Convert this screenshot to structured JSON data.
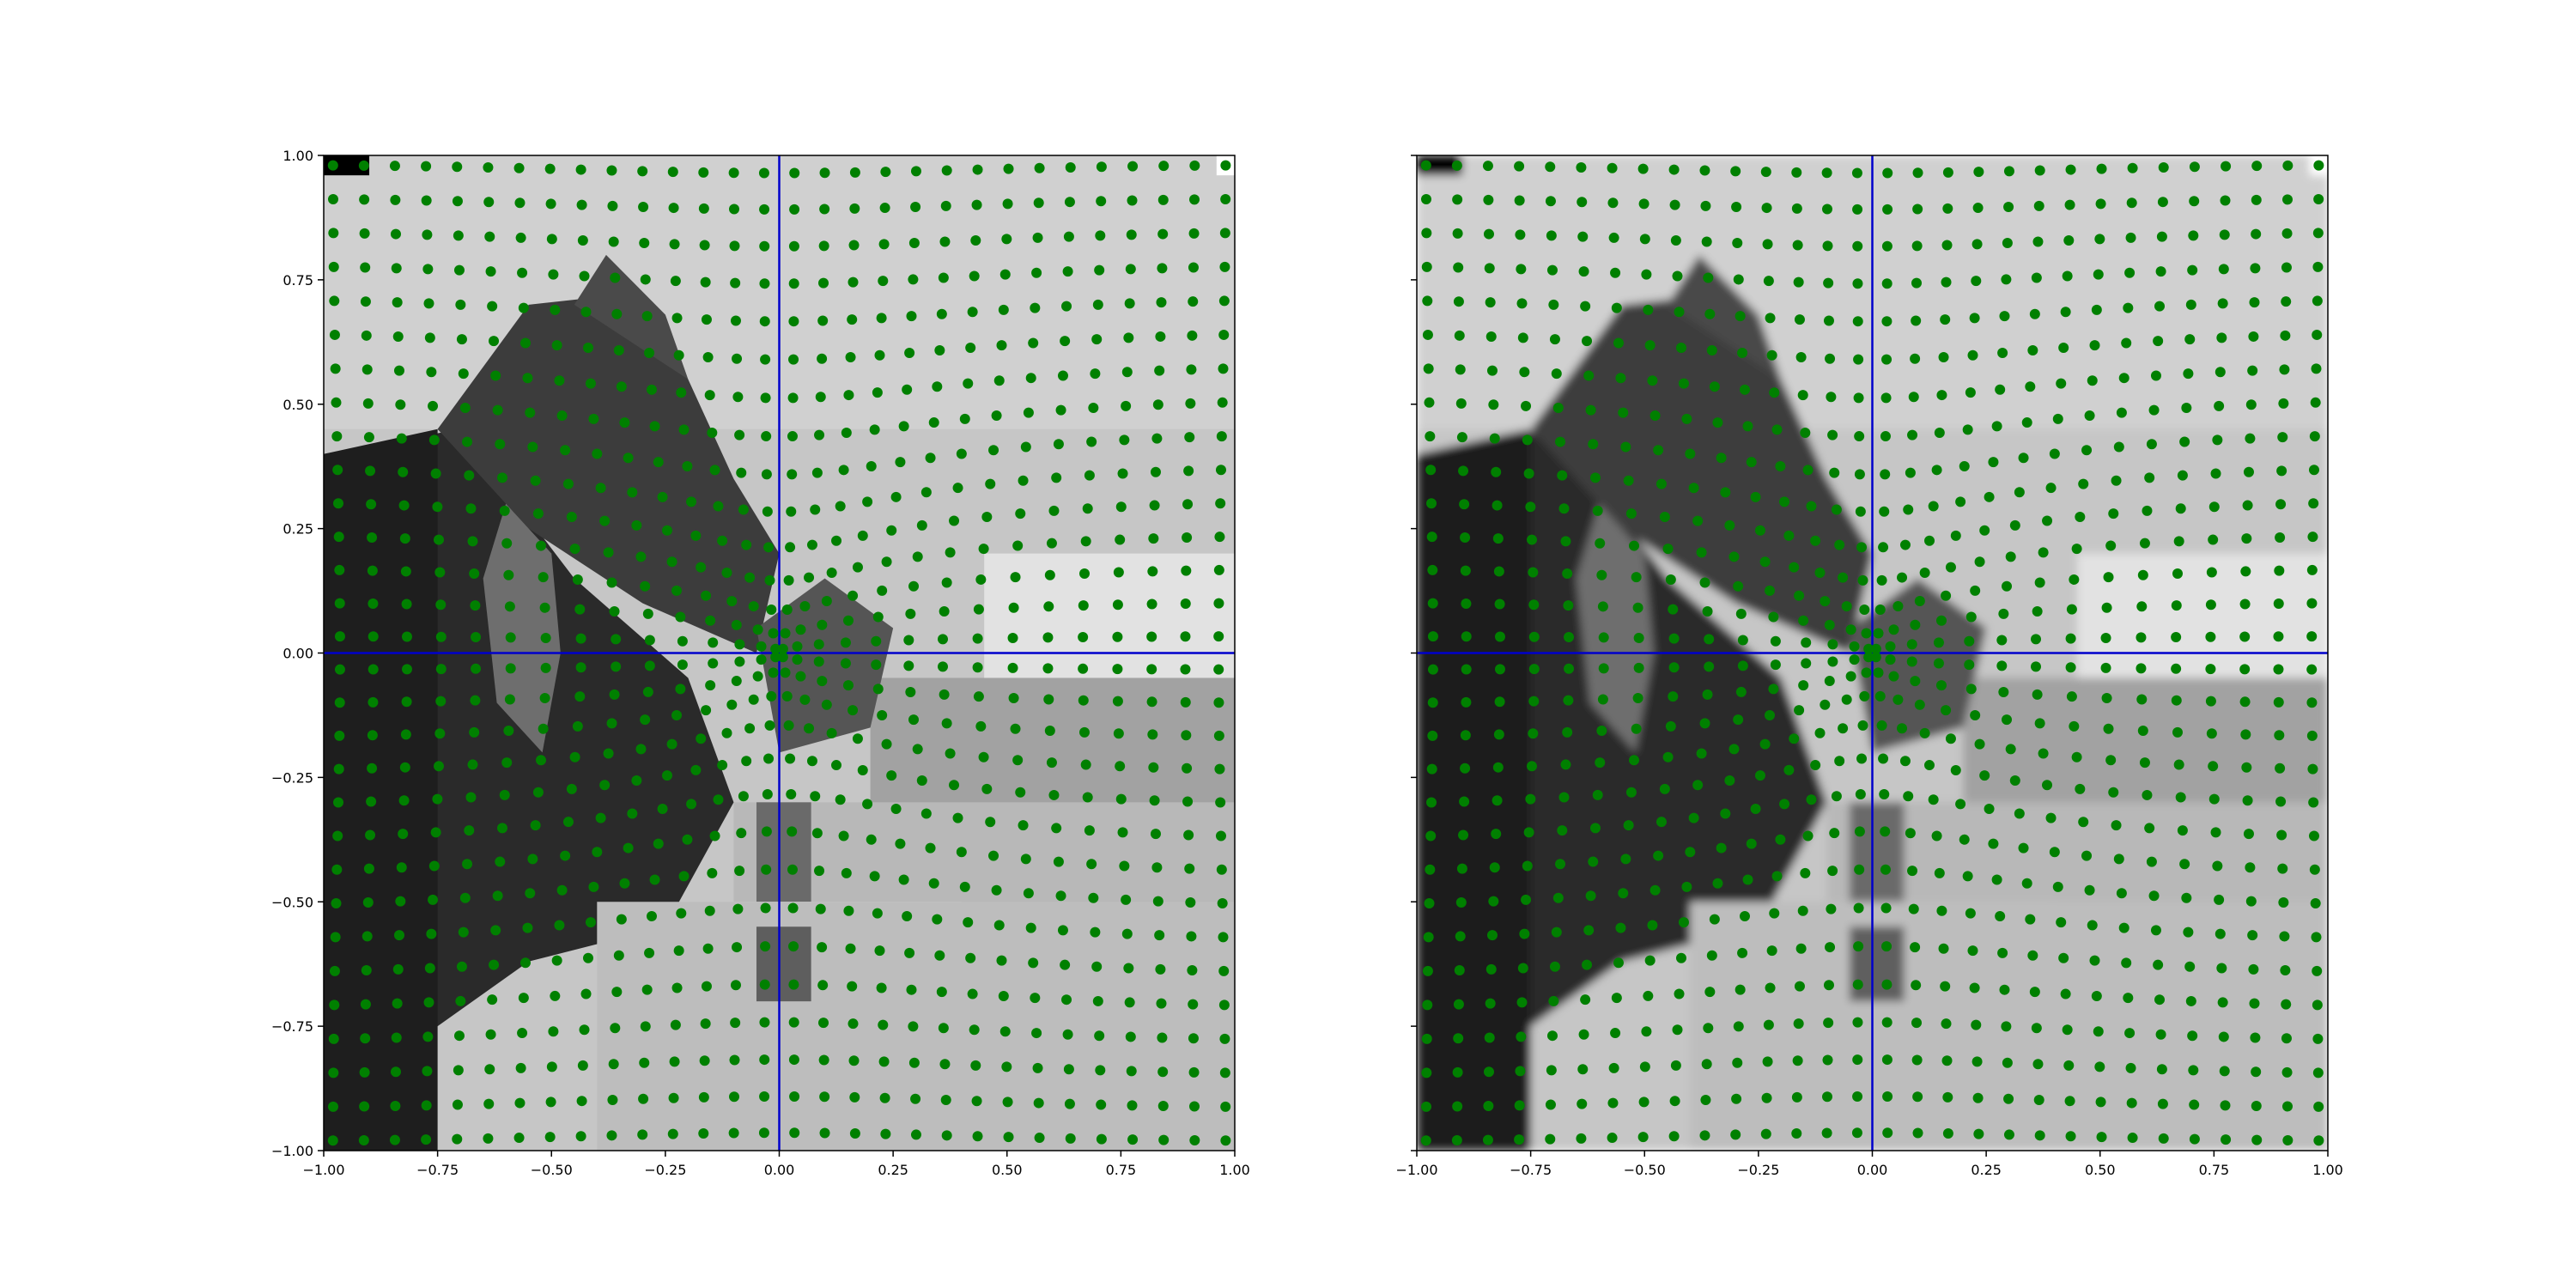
{
  "figure": {
    "background": "#ffffff",
    "panel_count": 2
  },
  "chart_data": [
    {
      "type": "scatter",
      "panel": "left",
      "image_style": "pixelated grayscale photo",
      "xlim": [
        -1.0,
        1.0
      ],
      "ylim": [
        -1.0,
        1.0
      ],
      "x_ticks": [
        -1.0,
        -0.75,
        -0.5,
        -0.25,
        0.0,
        0.25,
        0.5,
        0.75,
        1.0
      ],
      "y_ticks": [
        -1.0,
        -0.75,
        -0.5,
        -0.25,
        0.0,
        0.25,
        0.5,
        0.75,
        1.0
      ],
      "x_tick_labels": [
        "−1.00",
        "−0.75",
        "−0.50",
        "−0.25",
        "0.00",
        "0.25",
        "0.50",
        "0.75",
        "1.00"
      ],
      "y_tick_labels": [
        "−1.00",
        "−0.75",
        "−0.50",
        "−0.25",
        "0.00",
        "0.25",
        "0.50",
        "0.75",
        "1.00"
      ],
      "show_y_tick_labels": true,
      "crosshair": {
        "x": 0.0,
        "y": 0.0,
        "color": "#0000cc"
      },
      "marker_color": "#008000",
      "point_grid": {
        "n": 30,
        "start": -0.967,
        "step": 0.0667
      },
      "warp": {
        "center": [
          0.0,
          0.0
        ],
        "strength": 0.5,
        "radius": 0.55
      }
    },
    {
      "type": "scatter",
      "panel": "right",
      "image_style": "smooth grayscale photo",
      "xlim": [
        -1.0,
        1.0
      ],
      "ylim": [
        -1.0,
        1.0
      ],
      "x_ticks": [
        -1.0,
        -0.75,
        -0.5,
        -0.25,
        0.0,
        0.25,
        0.5,
        0.75,
        1.0
      ],
      "y_ticks": [
        -1.0,
        -0.75,
        -0.5,
        -0.25,
        0.0,
        0.25,
        0.5,
        0.75,
        1.0
      ],
      "x_tick_labels": [
        "−1.00",
        "−0.75",
        "−0.50",
        "−0.25",
        "0.00",
        "0.25",
        "0.50",
        "0.75",
        "1.00"
      ],
      "y_tick_labels": [],
      "show_y_tick_labels": false,
      "crosshair": {
        "x": 0.0,
        "y": 0.0,
        "color": "#0000cc"
      },
      "marker_color": "#008000",
      "point_grid": {
        "n": 30,
        "start": -0.967,
        "step": 0.0667
      },
      "warp": {
        "center": [
          0.0,
          0.0
        ],
        "strength": 0.5,
        "radius": 0.55
      }
    }
  ]
}
